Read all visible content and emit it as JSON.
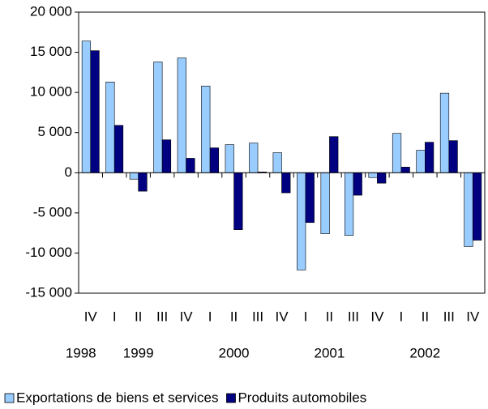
{
  "chart_data": {
    "type": "bar",
    "categories": [
      "IV",
      "I",
      "II",
      "III",
      "IV",
      "I",
      "II",
      "III",
      "IV",
      "I",
      "II",
      "III",
      "IV",
      "I",
      "II",
      "III",
      "IV"
    ],
    "year_labels": [
      "1998",
      "1999",
      "2000",
      "2001",
      "2002"
    ],
    "series": [
      {
        "name": "Exportations de biens et services",
        "color": "#99ccff",
        "values": [
          16400,
          11300,
          -800,
          13800,
          14300,
          10800,
          3500,
          3700,
          2500,
          -12100,
          -7600,
          -7800,
          -600,
          4900,
          2800,
          9900,
          -9200
        ]
      },
      {
        "name": "Produits automobiles",
        "color": "#000080",
        "values": [
          15200,
          5900,
          -2300,
          4100,
          1800,
          3100,
          -7100,
          100,
          -2500,
          -6200,
          4500,
          -2800,
          -1300,
          700,
          3800,
          4000,
          -8400
        ]
      }
    ],
    "ylim": [
      -15000,
      20000
    ],
    "yticks": [
      {
        "value": -15000,
        "label": "-15 000"
      },
      {
        "value": -10000,
        "label": "-10 000"
      },
      {
        "value": -5000,
        "label": "-5 000"
      },
      0,
      {
        "value": 5000,
        "label": "5 000"
      },
      {
        "value": 10000,
        "label": "10 000"
      },
      {
        "value": 15000,
        "label": "15 000"
      },
      {
        "value": 20000,
        "label": "20 000"
      }
    ],
    "legend": "bottom"
  }
}
